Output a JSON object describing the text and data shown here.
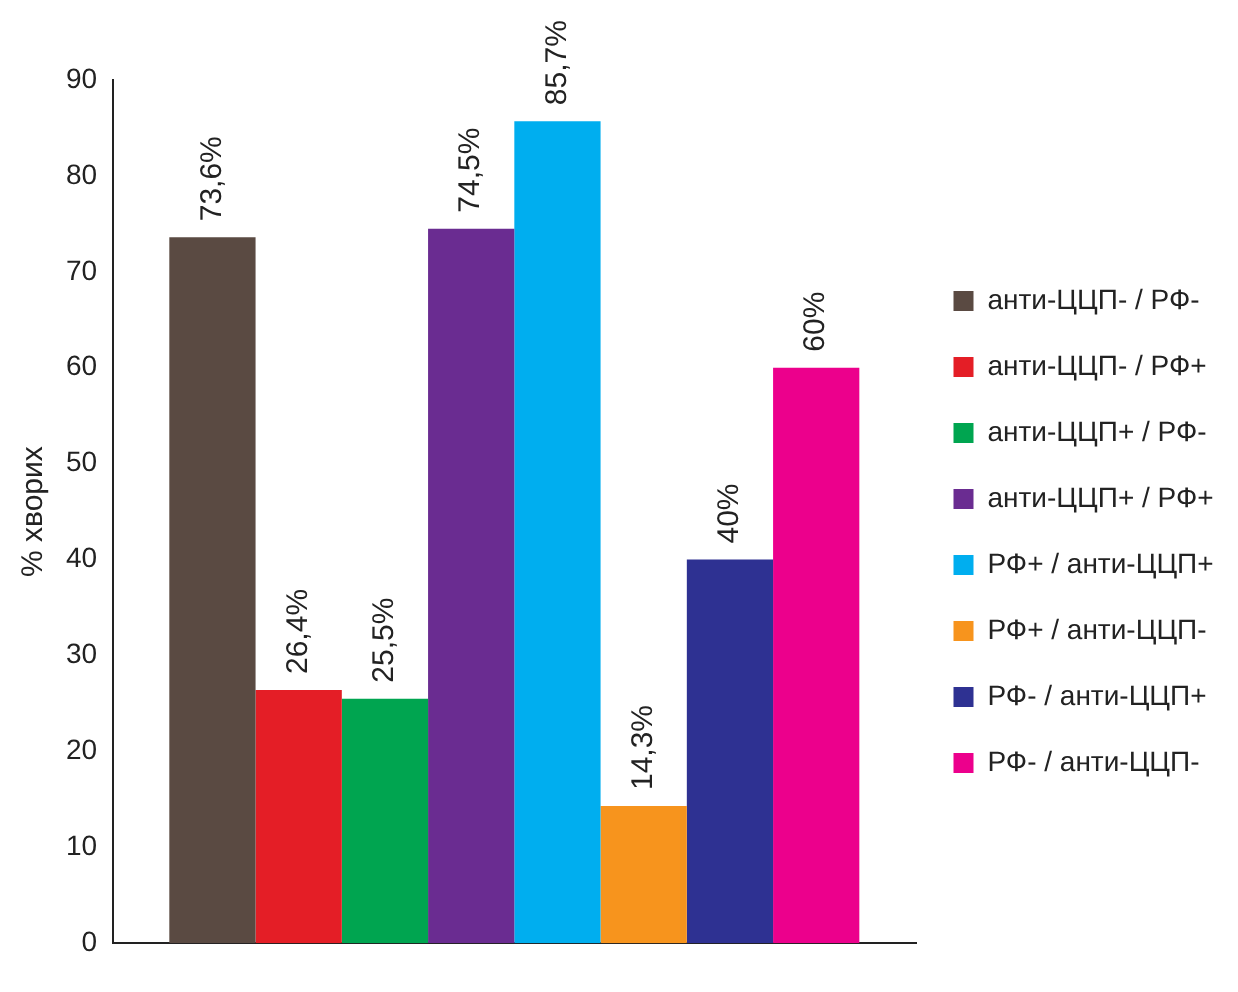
{
  "chart_data": {
    "type": "bar",
    "ylabel": "% хворих",
    "categories": [
      null
    ],
    "ylim": [
      0,
      90
    ],
    "yticks": [
      0,
      10,
      20,
      30,
      40,
      50,
      60,
      70,
      80,
      90
    ],
    "grid": false,
    "legend": "right",
    "series": [
      {
        "name": "анти-ЦЦП- / РФ-",
        "color": "#5a4a42",
        "values": [
          73.6
        ],
        "value_labels": [
          "73,6%"
        ]
      },
      {
        "name": "анти-ЦЦП- / РФ+",
        "color": "#e41e26",
        "values": [
          26.4
        ],
        "value_labels": [
          "26,4%"
        ]
      },
      {
        "name": "анти-ЦЦП+ / РФ-",
        "color": "#00a550",
        "values": [
          25.5
        ],
        "value_labels": [
          "25,5%"
        ]
      },
      {
        "name": "анти-ЦЦП+ / РФ+",
        "color": "#6a2c91",
        "values": [
          74.5
        ],
        "value_labels": [
          "74,5%"
        ]
      },
      {
        "name": "РФ+ / анти-ЦЦП+",
        "color": "#00aeef",
        "values": [
          85.7
        ],
        "value_labels": [
          "85,7%"
        ]
      },
      {
        "name": "РФ+ / анти-ЦЦП-",
        "color": "#f7941d",
        "values": [
          14.3
        ],
        "value_labels": [
          "14,3%"
        ]
      },
      {
        "name": "РФ- / анти-ЦЦП+",
        "color": "#2e3192",
        "values": [
          40
        ],
        "value_labels": [
          "40%"
        ]
      },
      {
        "name": "РФ- / анти-ЦЦП-",
        "color": "#ec008c",
        "values": [
          60
        ],
        "value_labels": [
          "60%"
        ]
      }
    ]
  }
}
